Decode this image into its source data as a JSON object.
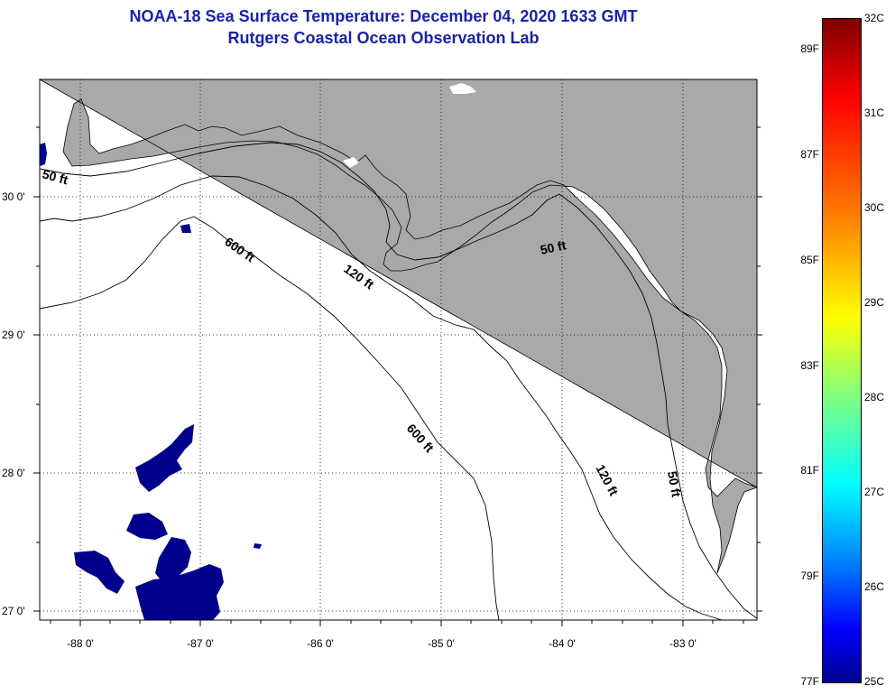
{
  "header": {
    "title": "NOAA-18 Sea Surface Temperature:  December 04, 2020 1633 GMT",
    "subtitle": "Rutgers Coastal Ocean Observation Lab"
  },
  "map": {
    "lon_labels": [
      "-88 0'",
      "-87 0'",
      "-86 0'",
      "-85 0'",
      "-84 0'",
      "-83 0'"
    ],
    "lat_labels": [
      "30 0'",
      "29 0'",
      "28 0'",
      "27 0'"
    ],
    "land_color": "#a9a9a9",
    "cold_water_color": "#00008c",
    "contours": [
      {
        "depth": "50 ft",
        "labels": [
          "50 ft",
          "50 ft",
          "50 ft"
        ]
      },
      {
        "depth": "120 ft",
        "labels": [
          "120 ft",
          "120 ft"
        ]
      },
      {
        "depth": "600 ft",
        "labels": [
          "600 ft",
          "600 ft"
        ]
      }
    ]
  },
  "colorbar": {
    "fahrenheit": [
      "89F",
      "87F",
      "85F",
      "83F",
      "81F",
      "79F",
      "77F"
    ],
    "celsius": [
      "32C",
      "31C",
      "30C",
      "29C",
      "28C",
      "27C",
      "26C",
      "25C"
    ]
  }
}
